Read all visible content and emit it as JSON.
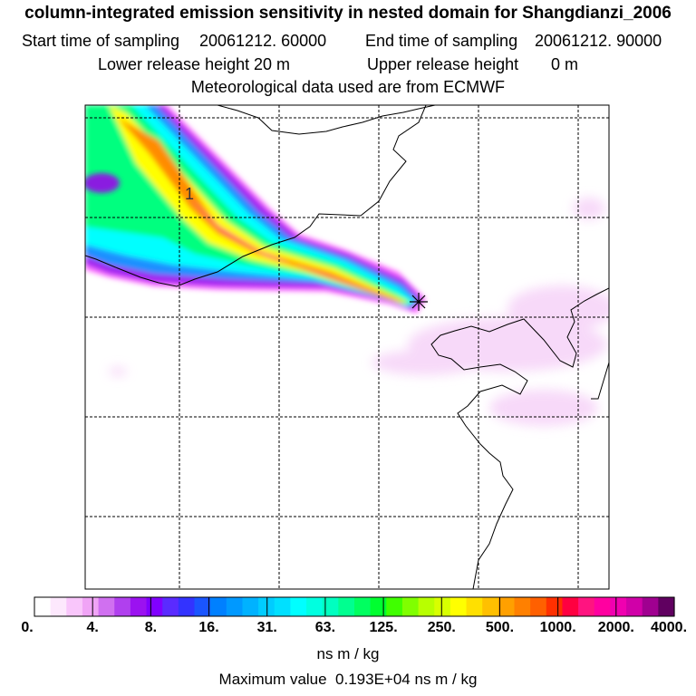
{
  "header": {
    "title": "column-integrated emission sensitivity in nested domain for Shangdianzi_2006",
    "start_label": "Start time of sampling",
    "start_value": "20061212. 60000",
    "end_label": "End time of sampling",
    "end_value": "20061212. 90000",
    "lower_label": "Lower release height",
    "lower_value": "20 m",
    "upper_label": "Upper release height",
    "upper_value": "0 m",
    "met_text": "Meteorological data used are from ECMWF"
  },
  "map": {
    "grid_label": "1",
    "plume_colors": [
      "#ff6fff",
      "#a020f0",
      "#1e90ff",
      "#00ffff",
      "#00ff7f",
      "#ffff00",
      "#ff8c00",
      "#ff1493"
    ],
    "background_halo_color": "#f6d3f8",
    "receptor_marker": "+"
  },
  "colorbar": {
    "ticks": [
      "0.",
      "4.",
      "8.",
      "16.",
      "31.",
      "63.",
      "125.",
      "250.",
      "500.",
      "1000.",
      "2000.",
      "4000."
    ],
    "colors": [
      "#ffffff",
      "#fde8fd",
      "#f9c6fb",
      "#f0a4f6",
      "#d070f0",
      "#b040ee",
      "#9b12f0",
      "#8000ff",
      "#5a2bff",
      "#3333ff",
      "#1a55ff",
      "#0080ff",
      "#0099ff",
      "#00b2ff",
      "#00ccff",
      "#00e0ff",
      "#00ffff",
      "#00ffe0",
      "#00ffc0",
      "#00ff90",
      "#00ff60",
      "#00ff30",
      "#40ff00",
      "#80ff00",
      "#b8ff00",
      "#d8ff00",
      "#ffff00",
      "#ffe000",
      "#ffc000",
      "#ffa000",
      "#ff8000",
      "#ff6000",
      "#ff3000",
      "#ff0040",
      "#ff1480",
      "#ff00a0",
      "#f000b0",
      "#d000a8",
      "#a00090",
      "#600060"
    ],
    "units": "ns m / kg"
  },
  "footer": {
    "max_label": "Maximum value",
    "max_value": "0.193E+04 ns m / kg"
  }
}
